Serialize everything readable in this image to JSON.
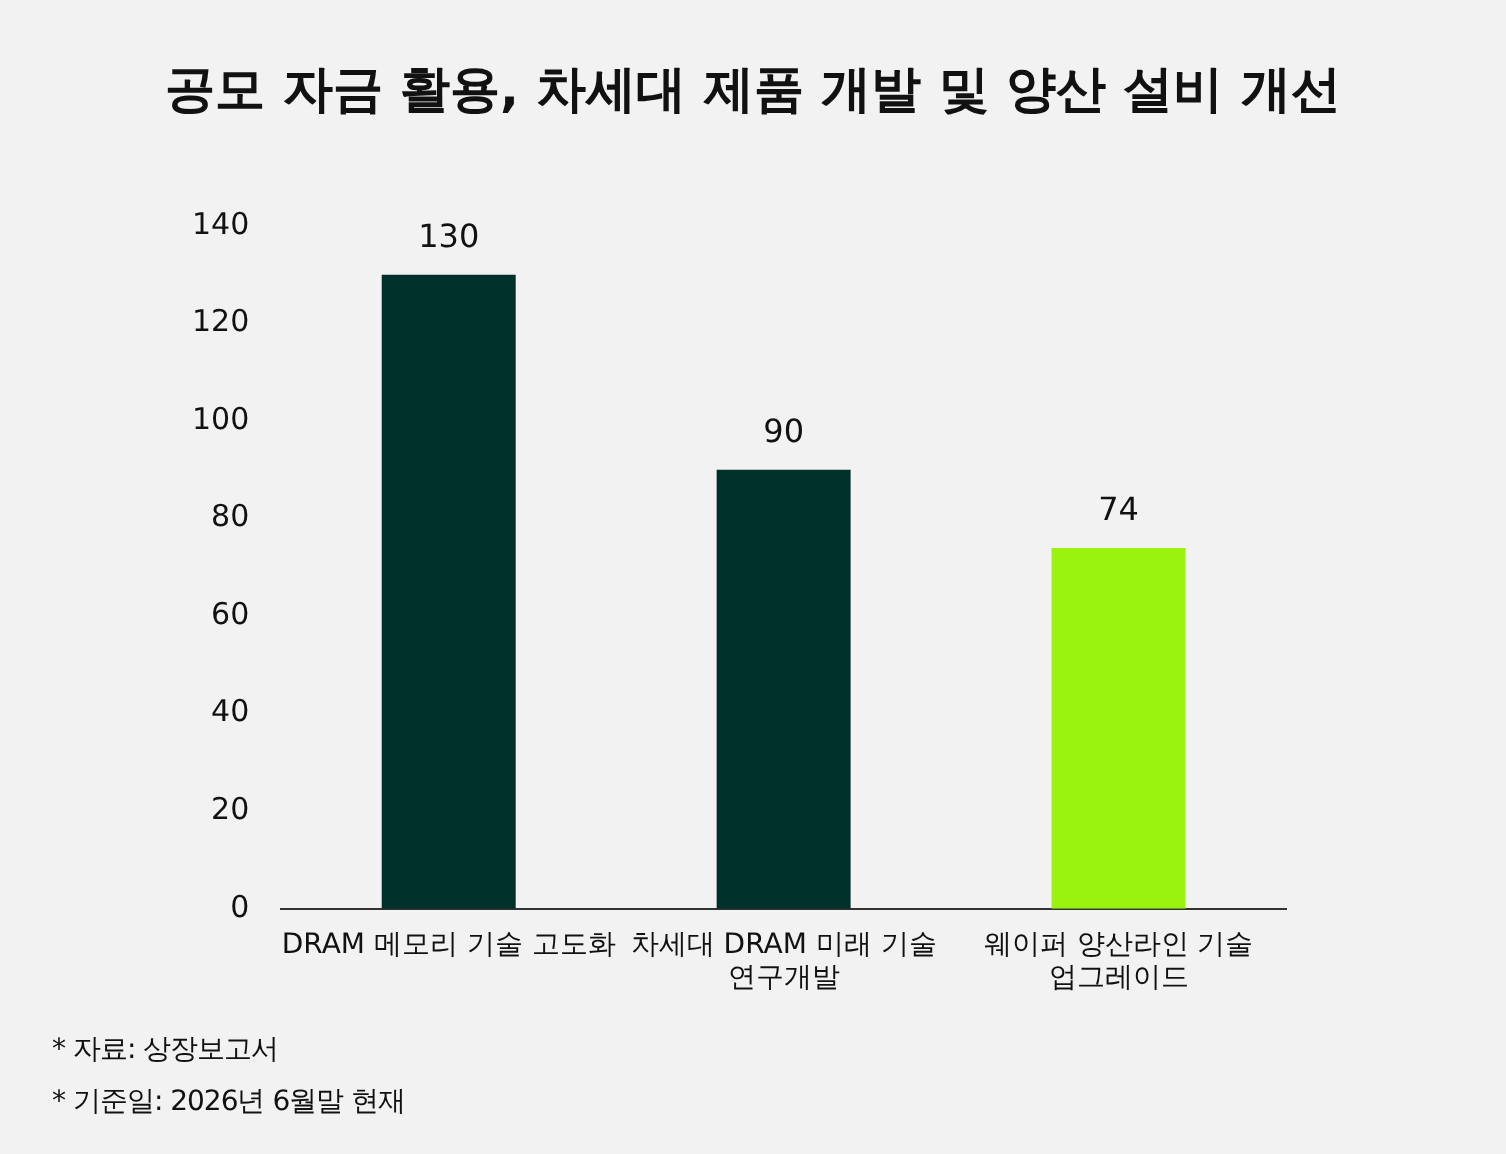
{
  "chart_data": {
    "type": "bar",
    "title": "공모 자금 활용, 차세대 제품 개발 및 양산 설비 개선",
    "categories": [
      "DRAM 메모리 기술 고도화",
      "차세대 DRAM 미래 기술 연구개발",
      "웨이퍼 양산라인 기술 업그레이드"
    ],
    "values": [
      130,
      90,
      74
    ],
    "colors": [
      "#00302a",
      "#00302a",
      "#9af20f"
    ],
    "ylim": [
      0,
      140
    ],
    "yticks": [
      0,
      20,
      40,
      60,
      80,
      100,
      120,
      140
    ],
    "grid": false,
    "legend": false,
    "data_labels": true,
    "annotations": [
      "* 자료: 상장보고서",
      "* 기준일: 2026년 6월말 현재"
    ]
  }
}
